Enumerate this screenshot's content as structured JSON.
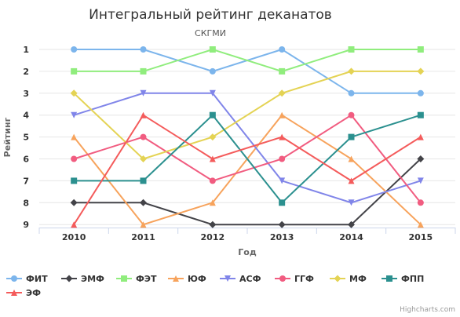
{
  "chart_data": {
    "type": "line",
    "title": "Интегральный рейтинг деканатов",
    "subtitle": "СКГМИ",
    "xlabel": "Год",
    "ylabel": "Рейтинг",
    "x": [
      "2010",
      "2011",
      "2012",
      "2013",
      "2014",
      "2015"
    ],
    "ylim": [
      1,
      9
    ],
    "y_reversed": true,
    "yticks": [
      "1",
      "2",
      "3",
      "4",
      "5",
      "6",
      "7",
      "8",
      "9"
    ],
    "grid": true,
    "legend_position": "bottom",
    "series": [
      {
        "name": "ФИТ",
        "color": "#7cb5ec",
        "marker": "circle",
        "values": [
          1,
          1,
          2,
          1,
          3,
          3
        ]
      },
      {
        "name": "ЭМФ",
        "color": "#434348",
        "marker": "diamond",
        "values": [
          8,
          8,
          9,
          9,
          9,
          6
        ]
      },
      {
        "name": "ФЭТ",
        "color": "#90ed7d",
        "marker": "square",
        "values": [
          2,
          2,
          1,
          2,
          1,
          1
        ]
      },
      {
        "name": "ЮФ",
        "color": "#f7a35c",
        "marker": "triangle",
        "values": [
          5,
          9,
          8,
          4,
          6,
          9
        ]
      },
      {
        "name": "АСФ",
        "color": "#8085e9",
        "marker": "triangle-down",
        "values": [
          4,
          3,
          3,
          7,
          8,
          7
        ]
      },
      {
        "name": "ГГФ",
        "color": "#f15c80",
        "marker": "circle",
        "values": [
          6,
          5,
          7,
          6,
          4,
          8
        ]
      },
      {
        "name": "МФ",
        "color": "#e4d354",
        "marker": "diamond",
        "values": [
          3,
          6,
          5,
          3,
          2,
          2
        ]
      },
      {
        "name": "ФПП",
        "color": "#2b908f",
        "marker": "square",
        "values": [
          7,
          7,
          4,
          8,
          5,
          4
        ]
      },
      {
        "name": "ЭФ",
        "color": "#f45b5b",
        "marker": "triangle",
        "values": [
          9,
          4,
          6,
          5,
          7,
          5
        ]
      }
    ]
  },
  "credits": "Highcharts.com"
}
